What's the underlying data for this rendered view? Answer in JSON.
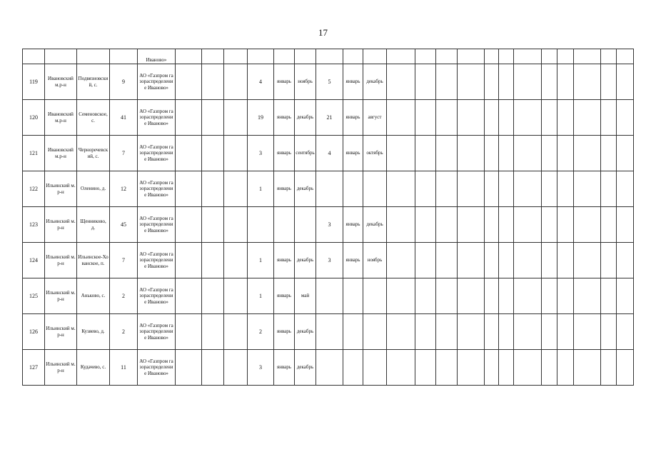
{
  "page_number": "17",
  "continued_row": {
    "org_tail": "Иваново»"
  },
  "rows": [
    {
      "num": "119",
      "district": "Ивановский м.р-н",
      "settlement": "Подвязновский, с.",
      "count": "9",
      "org": "АО «Газпром газораспределение Иваново»",
      "c1": "4",
      "m1_start": "январь",
      "m1_end": "ноябрь",
      "c2": "5",
      "m2_start": "январь",
      "m2_end": "декабрь"
    },
    {
      "num": "120",
      "district": "Ивановский м.р-н",
      "settlement": "Семеновское, с.",
      "count": "41",
      "org": "АО «Газпром газораспределение Иваново»",
      "c1": "19",
      "m1_start": "январь",
      "m1_end": "декабрь",
      "c2": "21",
      "m2_start": "январь",
      "m2_end": "август"
    },
    {
      "num": "121",
      "district": "Ивановский м.р-н",
      "settlement": "Черноречевский, с.",
      "count": "7",
      "org": "АО «Газпром газораспределение Иваново»",
      "c1": "3",
      "m1_start": "январь",
      "m1_end": "сентябрь",
      "c2": "4",
      "m2_start": "январь",
      "m2_end": "октябрь"
    },
    {
      "num": "122",
      "district": "Ильинский м.р-н",
      "settlement": "Оленино, д.",
      "count": "12",
      "org": "АО «Газпром газораспределение Иваново»",
      "c1": "1",
      "m1_start": "январь",
      "m1_end": "декабрь",
      "c2": "",
      "m2_start": "",
      "m2_end": ""
    },
    {
      "num": "123",
      "district": "Ильинский м.р-н",
      "settlement": "Щенниково, д.",
      "count": "45",
      "org": "АО «Газпром газораспределение Иваново»",
      "c1": "",
      "m1_start": "",
      "m1_end": "",
      "c2": "3",
      "m2_start": "январь",
      "m2_end": "декабрь"
    },
    {
      "num": "124",
      "district": "Ильинский м.р-н",
      "settlement": "Ильинское-Хованское, п.",
      "count": "7",
      "org": "АО «Газпром газораспределение Иваново»",
      "c1": "1",
      "m1_start": "январь",
      "m1_end": "декабрь",
      "c2": "3",
      "m2_start": "январь",
      "m2_end": "ноябрь"
    },
    {
      "num": "125",
      "district": "Ильинский м.р-н",
      "settlement": "Аньково, с.",
      "count": "2",
      "org": "АО «Газпром газораспределение Иваново»",
      "c1": "1",
      "m1_start": "январь",
      "m1_end": "май",
      "c2": "",
      "m2_start": "",
      "m2_end": ""
    },
    {
      "num": "126",
      "district": "Ильинский м.р-н",
      "settlement": "Кузяево, д.",
      "count": "2",
      "org": "АО «Газпром газораспределение Иваново»",
      "c1": "2",
      "m1_start": "январь",
      "m1_end": "декабрь",
      "c2": "",
      "m2_start": "",
      "m2_end": ""
    },
    {
      "num": "127",
      "district": "Ильинский м.р-н",
      "settlement": "Кудачево, с.",
      "count": "11",
      "org": "АО «Газпром газораспределение Иваново»",
      "c1": "3",
      "m1_start": "январь",
      "m1_end": "декабрь",
      "c2": "",
      "m2_start": "",
      "m2_end": ""
    }
  ]
}
